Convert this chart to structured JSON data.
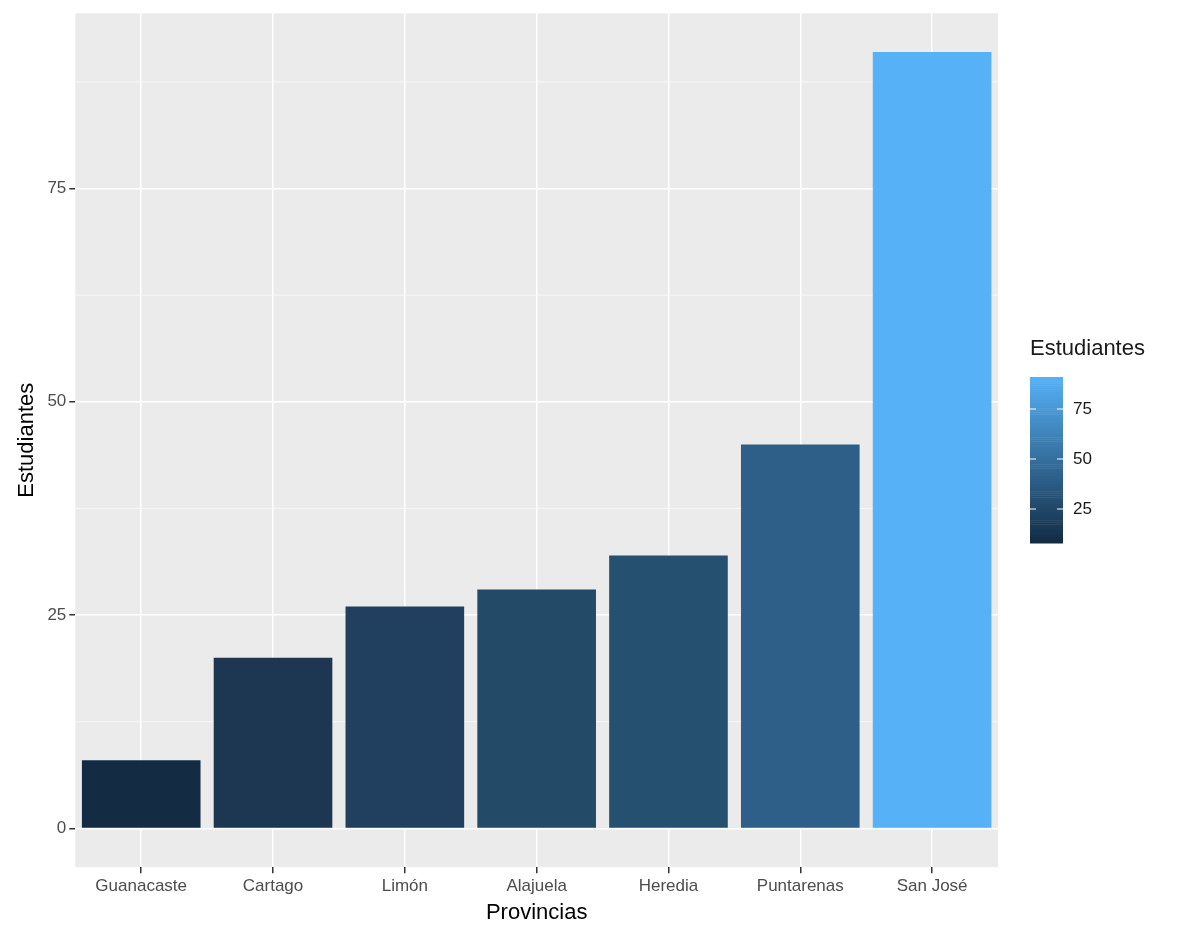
{
  "chart_data": {
    "type": "bar",
    "xlabel": "Provincias",
    "ylabel": "Estudiantes",
    "clabel": "Estudiantes",
    "categories": [
      "Guanacaste",
      "Cartago",
      "Limón",
      "Alajuela",
      "Heredia",
      "Puntarenas",
      "San José"
    ],
    "values": [
      8,
      20,
      26,
      28,
      32,
      45,
      91
    ],
    "colors": [
      "#132b43",
      "#1d3752",
      "#213f5f",
      "#234a67",
      "#25506f",
      "#2e5f88",
      "#56b1f7"
    ],
    "ylim": [
      -4.55,
      95.55
    ],
    "yticks": [
      0,
      25,
      50,
      75
    ],
    "clim": [
      8,
      91
    ],
    "cticks": [
      25,
      50,
      75
    ],
    "grid": true
  }
}
